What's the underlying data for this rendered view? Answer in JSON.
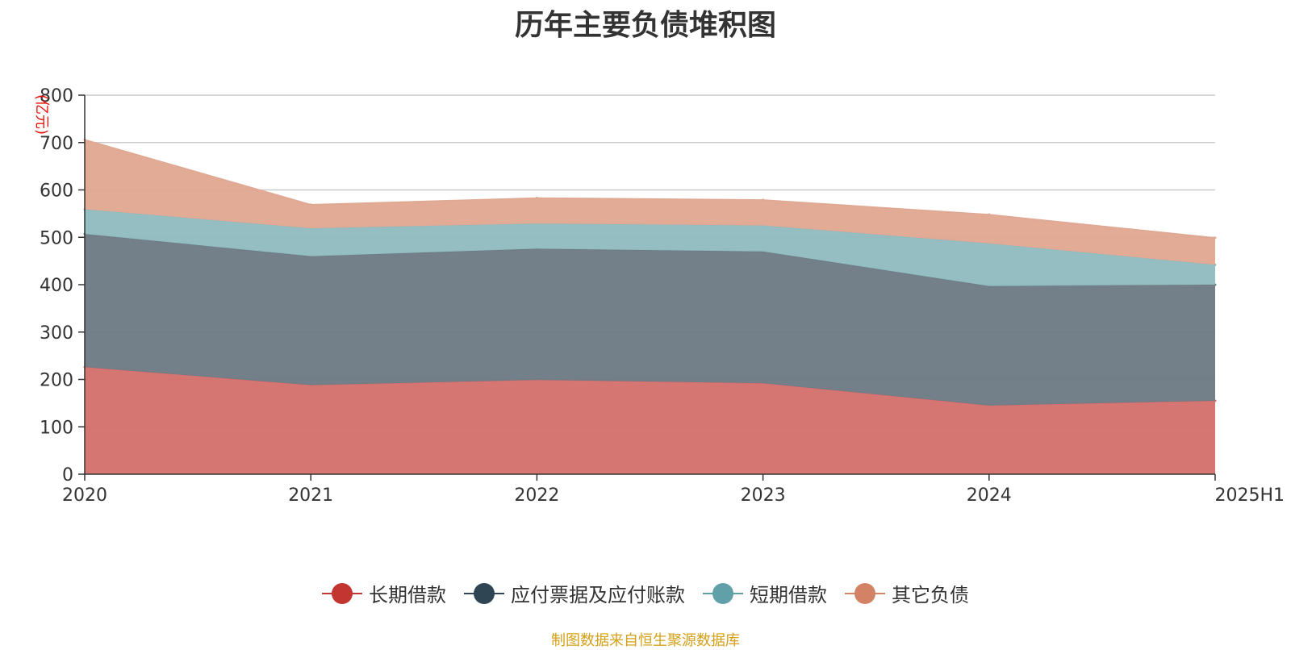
{
  "chart_data": {
    "type": "area",
    "stacked": true,
    "title": "历年主要负债堆积图",
    "unit_label": "(亿元)",
    "categories": [
      "2020",
      "2021",
      "2022",
      "2023",
      "2024",
      "2025H1"
    ],
    "ylim": [
      0,
      800
    ],
    "yticks": [
      0,
      100,
      200,
      300,
      400,
      500,
      600,
      700,
      800
    ],
    "grid": true,
    "legend_position": "bottom",
    "series": [
      {
        "name": "长期借款",
        "color": "#c23531",
        "fill": "#d4706d",
        "values": [
          226,
          188,
          199,
          192,
          145,
          155
        ]
      },
      {
        "name": "应付票据及应付账款",
        "color": "#2f4554",
        "fill": "#6d7a84",
        "values": [
          281,
          272,
          277,
          278,
          252,
          245
        ]
      },
      {
        "name": "短期借款",
        "color": "#61a0a8",
        "fill": "#90bbc0",
        "values": [
          52,
          59,
          53,
          55,
          90,
          42
        ]
      },
      {
        "name": "其它负债",
        "color": "#d48265",
        "fill": "#e0a892",
        "values": [
          147,
          50,
          54,
          54,
          61,
          57
        ]
      }
    ]
  },
  "footer": {
    "source": "制图数据来自恒生聚源数据库"
  }
}
